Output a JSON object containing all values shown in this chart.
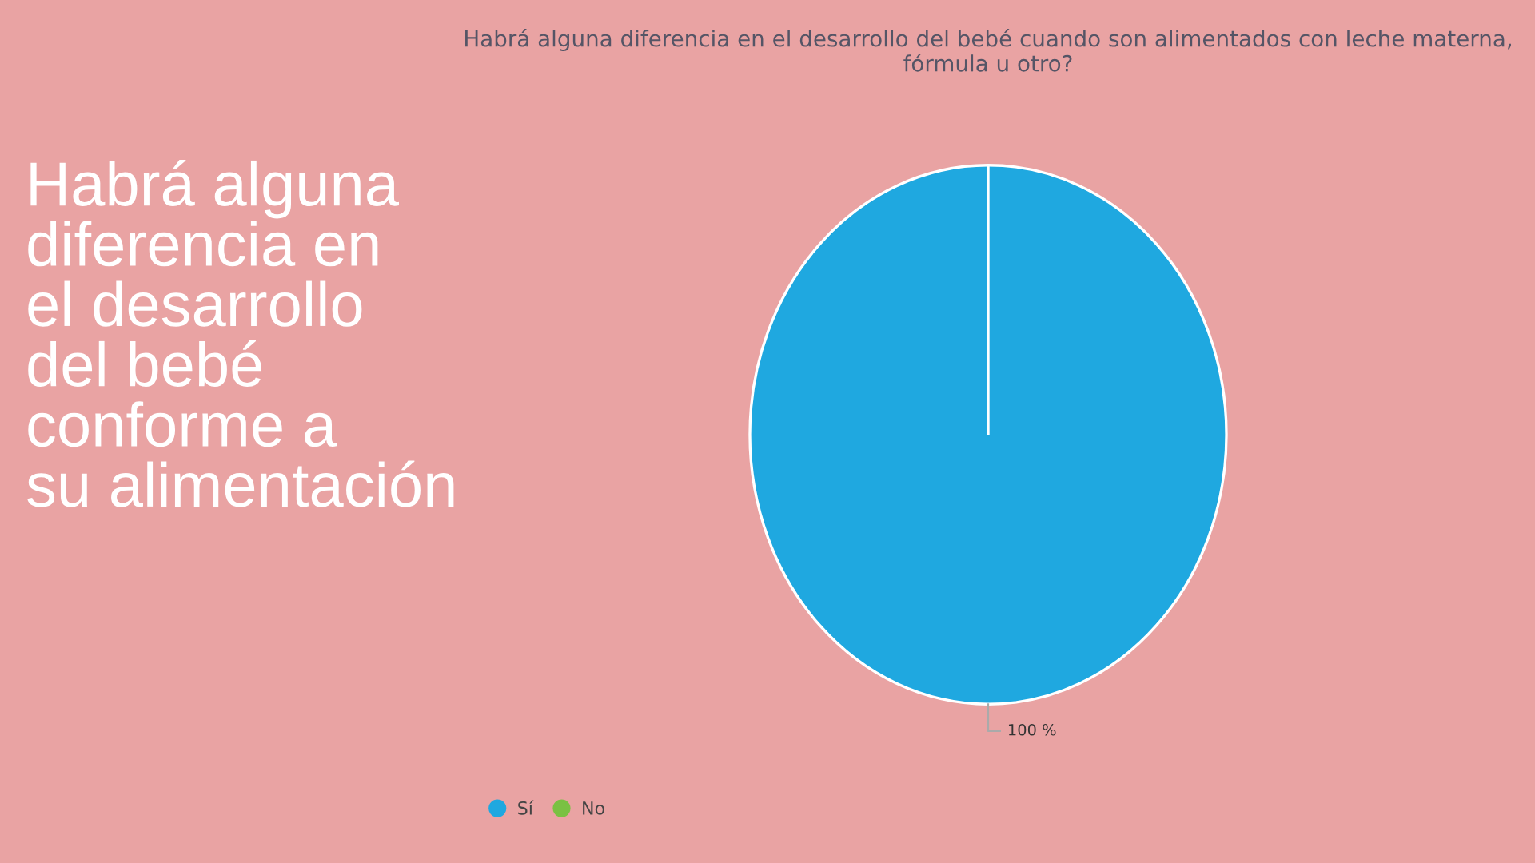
{
  "chart_data": {
    "type": "pie",
    "title": "Habrá alguna diferencia en el desarrollo del bebé cuando son alimentados con leche materna, fórmula u otro?",
    "categories": [
      "Sí",
      "No"
    ],
    "values": [
      100,
      0
    ],
    "colors": [
      "#1fa8e0",
      "#7ac143"
    ],
    "value_labels": [
      "100 %",
      null
    ],
    "legend": "bottom",
    "annotations": [
      "Habrá alguna\ndiferencia en\nel desarrollo\ndel bebé\nconforme a\nsu alimentación"
    ]
  }
}
